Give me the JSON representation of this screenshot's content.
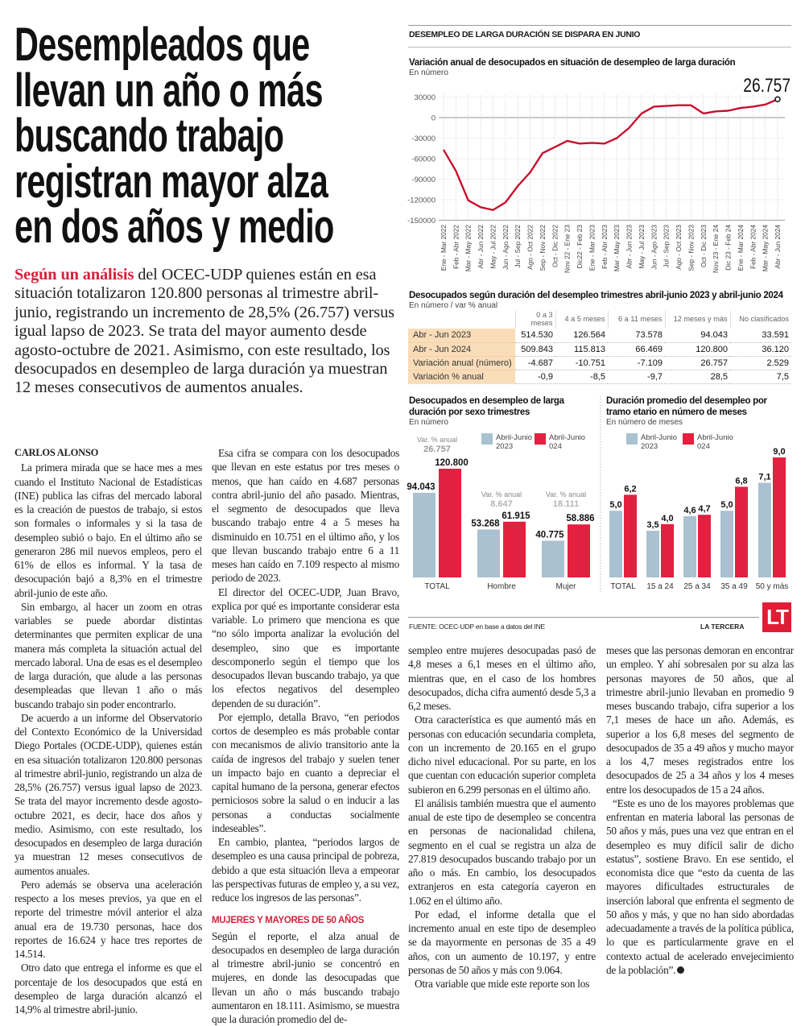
{
  "headline": [
    "Desempleados que",
    "llevan un año o más",
    "buscando trabajo",
    "registran mayor alza",
    "en dos años y medio"
  ],
  "lead": {
    "kicker": "Según un análisis",
    "text": " del OCEC-UDP quienes están en esa situación totalizaron 120.800 personas al trimestre abril-junio, registrando un incremento de 28,5% (26.757) versus igual lapso de 2023. Se trata del mayor aumento desde agosto-octubre de 2021. Asimismo, con este resultado, los desocupados en desempleo de larga duración ya muestran 12 meses consecutivos de aumentos anuales."
  },
  "byline": "CARLOS ALONSO",
  "columns": [
    {
      "paragraphs": [
        "La primera mirada que se hace mes a mes cuando el Instituto Nacional de Estadísticas (INE) publica las cifras del mercado laboral es la creación de puestos de trabajo, si estos son formales o informales y si la tasa de desempleo subió o bajo. En el último año se generaron 286 mil nuevos empleos, pero el 61% de ellos es informal. Y la tasa de desocupación bajó a 8,3% en el trimestre abril-junio de este año.",
        "Sin embargo, al hacer un zoom en otras variables se puede abordar distintas determinantes que permiten explicar de una manera más completa la situación actual del mercado laboral. Una de esas es el desempleo de larga duración, que alude a las personas desempleadas que llevan 1 año o más buscando trabajo sin poder encontrarlo.",
        "De acuerdo a un informe del Observatorio del Contexto Económico de la Universidad Diego Portales (OCDE-UDP), quienes están en esa situación totalizaron 120.800 personas al trimestre abril-junio, registrando un alza de 28,5% (26.757) versus igual lapso de 2023. Se trata del mayor incremento desde agosto-octubre 2021, es decir, hace dos años y medio. Asimismo, con este resultado, los desocupados en desempleo de larga duración ya muestran 12 meses consecutivos de aumentos anuales.",
        "Pero además se observa una aceleración respecto a los meses previos, ya que en el reporte del trimestre móvil anterior el alza anual era de 19.730 personas, hace dos reportes de 16.624 y hace tres reportes de 14.514.",
        "Otro dato que entrega el informe es que el porcentaje de los desocupados que está en desempleo de larga duración alcanzó el 14,9% al trimestre abril-junio."
      ]
    },
    {
      "paragraphs": [
        "Esa cifra se compara con los desocupados que llevan en este estatus por tres meses o menos, que han caído en 4.687 personas contra abril-junio del año pasado. Mientras, el segmento de desocupados que lleva buscando trabajo entre 4 a 5 meses ha disminuido en 10.751 en el último año, y los que llevan buscando trabajo entre 6 a 11 meses han caído en 7.109 respecto al mismo periodo de 2023.",
        "El director del OCEC-UDP, Juan Bravo, explica por qué es importante considerar esta variable. Lo primero que menciona es que “no sólo importa analizar la evolución del desempleo, sino que es importante descomponerlo según el tiempo que los desocupados llevan buscando trabajo, ya que los efectos negativos del desempleo dependen de su duración”.",
        "Por ejemplo, detalla Bravo, “en periodos cortos de desempleo es más probable contar con mecanismos de alivio transitorio ante la caída de ingresos del trabajo y suelen tener un impacto bajo en cuanto a depreciar el capital humano de la persona, generar efectos perniciosos sobre la salud o en inducir a las personas a conductas socialmente indeseables”.",
        "En cambio, plantea, “periodos largos de desempleo es una causa principal de pobreza, debido a que esta situación lleva a empeorar las perspectivas futuras de empleo y, a su vez, reduce los ingresos de las personas”."
      ],
      "subhead": "MUJERES Y MAYORES DE 50 AÑOS",
      "after_subhead": "Según el reporte, el alza anual de desocupados en desempleo de larga duración al trimestre abril-junio se concentró en mujeres, en donde las desocupadas que llevan un año o más buscando trabajo aumentaron en 18.111. Asimismo, se muestra que la duración promedio del de-"
    },
    {
      "paragraphs": [
        "sempleo entre mujeres desocupadas pasó de 4,8 meses a 6,1 meses en el último año, mientras que, en el caso de los hombres desocupados, dicha cifra aumentó desde 5,3 a 6,2 meses.",
        "Otra característica es que aumentó más en personas con educación secundaria completa, con un incremento de 20.165 en el grupo dicho nivel educacional. Por su parte, en los que cuentan con educación superior completa subieron en 6.299 personas en el último año.",
        "El análisis también muestra que el aumento anual de este tipo de desempleo se concentra en personas de nacionalidad chilena, segmento en el cual se registra un alza de 27.819 desocupados buscando trabajo por un año o más. En cambio, los desocupados extranjeros en esta categoría cayeron en 1.062 en el último año.",
        "Por edad, el informe detalla que el incremento anual en este tipo de desempleo se da mayormente en personas de 35 a 49 años, con un aumento de 10.197, y entre personas de 50 años y más con 9.064.",
        "Otra variable que mide este reporte son los"
      ]
    },
    {
      "paragraphs": [
        "meses que las personas demoran en encontrar un empleo. Y ahí sobresalen por su alza las personas mayores de 50 años, que al trimestre abril-junio llevaban en promedio 9 meses buscando trabajo, cifra superior a los 7,1 meses de hace un año. Además, es superior a los 6,8 meses del segmento de desocupados de 35 a 49 años y mucho mayor a los 4,7 meses registrados entre los desocupados de 25 a 34 años y los 4 meses entre los desocupados de 15 a 24 años.",
        "“Este es uno de los mayores problemas que enfrentan en materia laboral las personas de 50 años y más, pues una vez que entran en el desempleo es muy difícil salir de dicho estatus”, sostiene Bravo. En ese sentido, el economista dice que “esto da cuenta de las mayores dificultades estructurales de inserción laboral que enfrenta el segmento de 50 años y más, y que no han sido abordadas adecuadamente a través de la política pública, lo que es particularmente grave en el contexto actual de acelerado envejecimiento de la población”."
      ]
    }
  ],
  "graphic": {
    "title": "DESEMPLEO DE LARGA DURACIÓN SE DISPARA EN JUNIO",
    "source": "FUENTE: OCEC-UDP en base a datos del INE",
    "brand": "LA TERCERA",
    "logo": "LT",
    "colors": {
      "series_2023": "#a9c1d0",
      "series_2024": "#e3203f",
      "line": "#c8102e",
      "table_label_bg": "#f9dcb8",
      "kicker": "#d71f3c"
    }
  },
  "chart_data": [
    {
      "type": "line",
      "title": "Variación anual de desocupados en situación de desempleo de larga duración",
      "subtitle": "En número",
      "x": [
        "Ene - Mar 2022",
        "Feb - Abr 2022",
        "Mar - May 2022",
        "Abr - Jun 2022",
        "May - Jul 2022",
        "Jun - Ago 2022",
        "Jul - Sep 2022",
        "Ago - Oct 2022",
        "Sep - Nov 2022",
        "Oct - Dic 2022",
        "Nov 22 - Ene 23",
        "Dic22 - Feb 23",
        "Ene - Mar 2023",
        "Feb - Abr 2023",
        "Mar - May 2023",
        "Abr - Jun 2023",
        "May - Jul 2023",
        "Jun - Ago 2023",
        "Jul - Sep 2023",
        "Ago - Oct 2023",
        "Sep - Nov 2023",
        "Oct - Dic 2023",
        "Nov 23 - Ene 24",
        "Dic 23 - Feb 24",
        "Ene - Mar 2024",
        "Feb - Abr 2024",
        "Mar - May 2024",
        "Abr - Jun 2024"
      ],
      "values": [
        -47000,
        -78000,
        -121000,
        -131000,
        -135000,
        -124000,
        -100000,
        -80000,
        -52000,
        -43000,
        -34000,
        -38000,
        -37000,
        -38000,
        -30000,
        -15000,
        6000,
        16000,
        17000,
        18000,
        18000,
        6000,
        9000,
        10000,
        14000,
        16000,
        19000,
        26757
      ],
      "yticks": [
        "30000",
        "0",
        "-30000",
        "-60000",
        "-90000",
        "-120000",
        "-150000"
      ],
      "ylim": [
        -150000,
        30000
      ],
      "annotation": "26.757",
      "grid": true
    },
    {
      "type": "table",
      "title": "Desocupados según duración del desempleo trimestres abril-junio 2023 y abril-junio 2024",
      "subtitle": "En número / var % anual",
      "columns": [
        "0 a 3 meses",
        "4 a 5 meses",
        "6 a 11 meses",
        "12 meses y más",
        "No clasificados"
      ],
      "rows": [
        {
          "label": "Abr - Jun 2023",
          "values": [
            "514.530",
            "126.564",
            "73.578",
            "94.043",
            "33.591"
          ]
        },
        {
          "label": "Abr - Jun 2024",
          "values": [
            "509.843",
            "115.813",
            "66.469",
            "120.800",
            "36.120"
          ]
        },
        {
          "label": "Variación anual (número)",
          "values": [
            "-4.687",
            "-10.751",
            "-7.109",
            "26.757",
            "2.529"
          ]
        },
        {
          "label": "Variación % anual",
          "values": [
            "-0,9",
            "-8,5",
            "-9,7",
            "28,5",
            "7,5"
          ]
        }
      ]
    },
    {
      "type": "bar",
      "title": "Desocupados en desempleo de larga duración por sexo trimestres",
      "subtitle": "En número",
      "legend": [
        "Abril-Junio 2023",
        "Abril-Junio 024"
      ],
      "legend_lines": [
        [
          "Abril-Junio",
          "2023"
        ],
        [
          "Abril-Junio",
          "024"
        ]
      ],
      "categories": [
        "TOTAL",
        "Hombre",
        "Mujer"
      ],
      "series": [
        {
          "name": "Abril-Junio 2023",
          "values": [
            94043,
            53268,
            40775
          ],
          "labels": [
            "94.043",
            "53.268",
            "40.775"
          ]
        },
        {
          "name": "Abril-Junio 024",
          "values": [
            120800,
            61915,
            58886
          ],
          "labels": [
            "120.800",
            "61.915",
            "58.886"
          ]
        }
      ],
      "annotations": [
        {
          "label": "Var. % anual",
          "value": "26.757"
        },
        {
          "label": "Var. % anual",
          "value": "8.647"
        },
        {
          "label": "Var. % anual",
          "value": "18.111"
        }
      ],
      "ylim": [
        0,
        120800
      ]
    },
    {
      "type": "bar",
      "title": "Duración promedio del desempleo por tramo etario en número de meses",
      "subtitle": "En número de meses",
      "legend": [
        "Abril-Junio 2023",
        "Abril-Junio 024"
      ],
      "legend_lines": [
        [
          "Abril-Junio",
          "2023"
        ],
        [
          "Abril-Junio",
          "024"
        ]
      ],
      "categories": [
        "TOTAL",
        "15 a 24",
        "25 a 34",
        "35 a 49",
        "50 y más"
      ],
      "series": [
        {
          "name": "Abril-Junio 2023",
          "values": [
            5.0,
            3.5,
            4.6,
            5.0,
            7.1
          ],
          "labels": [
            "5,0",
            "3,5",
            "4,6",
            "5,0",
            "7,1"
          ]
        },
        {
          "name": "Abril-Junio 024",
          "values": [
            6.2,
            4.0,
            4.7,
            6.8,
            9.0
          ],
          "labels": [
            "6,2",
            "4,0",
            "4,7",
            "6,8",
            "9,0"
          ]
        }
      ],
      "ylim": [
        0,
        9
      ]
    }
  ]
}
